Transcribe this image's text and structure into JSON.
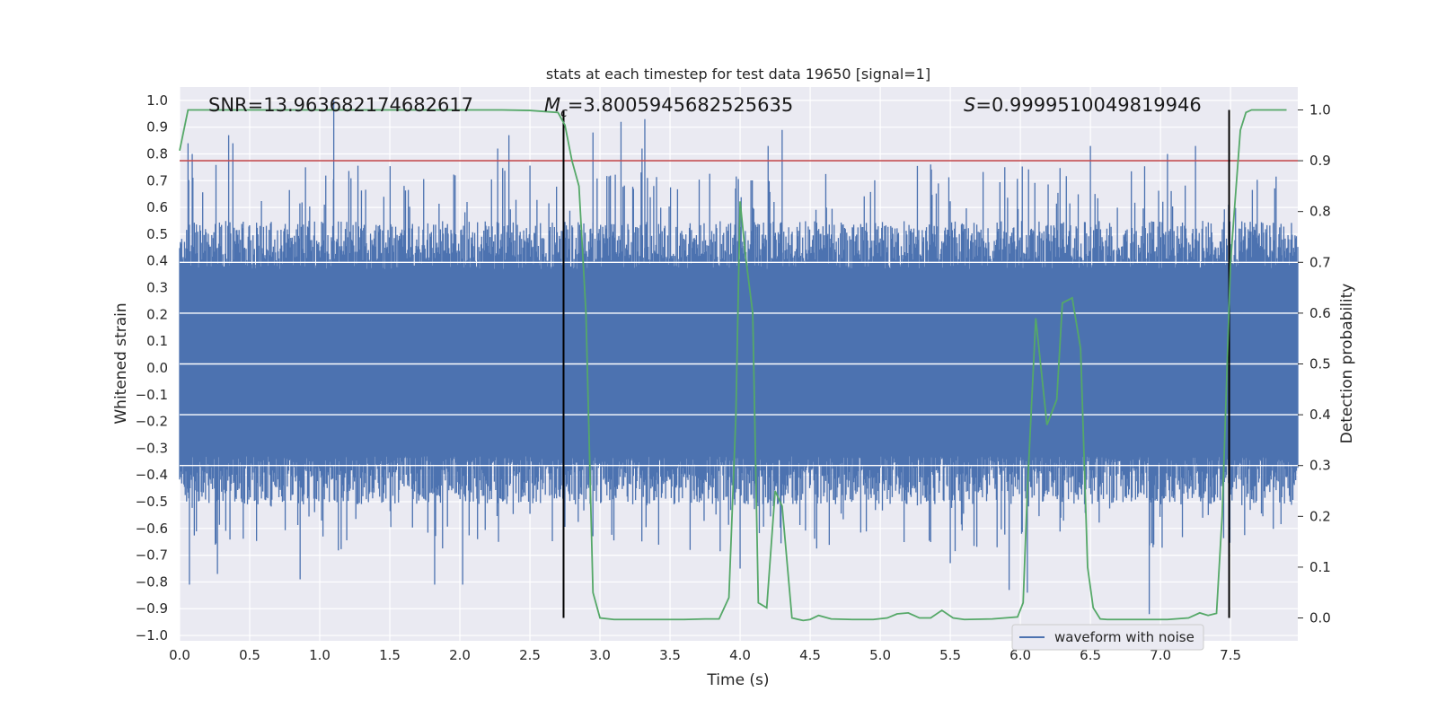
{
  "chart_data": {
    "type": "line",
    "title": "stats at each timestep for test data 19650 [signal=1]",
    "xlabel": "Time (s)",
    "ylabel": "Whitened strain",
    "y2label": "Detection probability",
    "xlim": [
      0.0,
      7.98
    ],
    "ylim": [
      -1.02,
      1.05
    ],
    "y2lim": [
      -0.045,
      1.045
    ],
    "grid": true,
    "x_ticks": [
      0.0,
      0.5,
      1.0,
      1.5,
      2.0,
      2.5,
      3.0,
      3.5,
      4.0,
      4.5,
      5.0,
      5.5,
      6.0,
      6.5,
      7.0,
      7.5
    ],
    "x_tick_labels": [
      "0.0",
      "0.5",
      "1.0",
      "1.5",
      "2.0",
      "2.5",
      "3.0",
      "3.5",
      "4.0",
      "4.5",
      "5.0",
      "5.5",
      "6.0",
      "6.5",
      "7.0",
      "7.5"
    ],
    "y_ticks": [
      1.0,
      0.9,
      0.8,
      0.7,
      0.6,
      0.5,
      0.4,
      0.3,
      0.2,
      0.1,
      0.0,
      -0.1,
      -0.2,
      -0.3,
      -0.4,
      -0.5,
      -0.6,
      -0.7,
      -0.8,
      -0.9,
      -1.0
    ],
    "y_tick_labels": [
      "1.0",
      "0.9",
      "0.8",
      "0.7",
      "0.6",
      "0.5",
      "0.4",
      "0.3",
      "0.2",
      "0.1",
      "0.0",
      "−0.1",
      "−0.2",
      "−0.3",
      "−0.4",
      "−0.5",
      "−0.6",
      "−0.7",
      "−0.8",
      "−0.9",
      "−1.0"
    ],
    "y2_ticks": [
      1.0,
      0.9,
      0.8,
      0.7,
      0.6,
      0.5,
      0.4,
      0.3,
      0.2,
      0.1,
      0.0
    ],
    "y2_tick_labels": [
      "1.0",
      "0.9",
      "0.8",
      "0.7",
      "0.6",
      "0.5",
      "0.4",
      "0.3",
      "0.2",
      "0.1",
      "0.0"
    ],
    "annotations": {
      "snr": "SNR=13.963682174682617",
      "mc_symbol": "M",
      "mc_subscript": "c",
      "mc_value": "=3.8005945682525635",
      "s_symbol": "S",
      "s_value": "=0.9999510049819946"
    },
    "threshold": {
      "value": 0.9,
      "axis": "y2",
      "color": "#c44e52"
    },
    "vlines": [
      2.74,
      7.49
    ],
    "legend": {
      "label": "waveform with noise",
      "position": "lower-right"
    },
    "series": [
      {
        "name": "waveform with noise",
        "axis": "y",
        "color": "#4c72b0",
        "kind": "noise",
        "spikes": [
          {
            "x": 0.06,
            "y": 0.84
          },
          {
            "x": 0.09,
            "y": 0.8
          },
          {
            "x": 0.35,
            "y": 0.87
          },
          {
            "x": 0.38,
            "y": 0.84
          },
          {
            "x": 1.1,
            "y": 1.0
          },
          {
            "x": 2.27,
            "y": 0.82
          },
          {
            "x": 2.35,
            "y": 0.87
          },
          {
            "x": 2.95,
            "y": 0.88
          },
          {
            "x": 3.15,
            "y": 0.92
          },
          {
            "x": 3.3,
            "y": 0.82
          },
          {
            "x": 3.32,
            "y": 0.93
          },
          {
            "x": 4.2,
            "y": 0.83
          },
          {
            "x": 4.3,
            "y": 0.89
          },
          {
            "x": 6.5,
            "y": 0.83
          },
          {
            "x": 7.05,
            "y": 0.8
          },
          {
            "x": 7.25,
            "y": 0.83
          },
          {
            "x": 0.07,
            "y": -0.81
          },
          {
            "x": 0.27,
            "y": -0.77
          },
          {
            "x": 0.86,
            "y": -0.79
          },
          {
            "x": 1.82,
            "y": -0.81
          },
          {
            "x": 2.02,
            "y": -0.81
          },
          {
            "x": 5.92,
            "y": -0.83
          },
          {
            "x": 6.05,
            "y": -0.84
          },
          {
            "x": 6.92,
            "y": -0.92
          },
          {
            "x": 4.0,
            "y": -0.75
          },
          {
            "x": 5.5,
            "y": -0.73
          }
        ]
      },
      {
        "name": "detection probability",
        "axis": "y2",
        "color": "#55a868",
        "x": [
          0.0,
          0.06,
          0.3,
          0.6,
          1.0,
          1.5,
          2.0,
          2.3,
          2.5,
          2.7,
          2.75,
          2.8,
          2.85,
          2.9,
          2.95,
          3.0,
          3.1,
          3.3,
          3.6,
          3.75,
          3.85,
          3.92,
          3.97,
          4.0,
          4.04,
          4.09,
          4.13,
          4.19,
          4.25,
          4.3,
          4.37,
          4.45,
          4.5,
          4.56,
          4.65,
          4.8,
          4.95,
          5.05,
          5.12,
          5.2,
          5.28,
          5.36,
          5.44,
          5.52,
          5.6,
          5.8,
          5.98,
          6.02,
          6.05,
          6.11,
          6.19,
          6.26,
          6.3,
          6.37,
          6.43,
          6.48,
          6.52,
          6.57,
          6.62,
          6.7,
          6.9,
          7.05,
          7.2,
          7.28,
          7.34,
          7.4,
          7.44,
          7.5,
          7.57,
          7.61,
          7.65,
          7.75,
          7.9
        ],
        "y": [
          0.92,
          1.0,
          1.0,
          1.0,
          1.0,
          1.0,
          1.0,
          1.0,
          0.999,
          0.995,
          0.97,
          0.9,
          0.85,
          0.6,
          0.05,
          0.0,
          -0.003,
          -0.003,
          -0.003,
          -0.002,
          -0.002,
          0.04,
          0.4,
          0.82,
          0.71,
          0.6,
          0.03,
          0.02,
          0.25,
          0.22,
          0.0,
          -0.005,
          -0.003,
          0.005,
          -0.002,
          -0.003,
          -0.003,
          0.0,
          0.008,
          0.01,
          0.0,
          0.0,
          0.015,
          0.0,
          -0.003,
          -0.002,
          0.002,
          0.03,
          0.25,
          0.59,
          0.38,
          0.43,
          0.62,
          0.63,
          0.53,
          0.1,
          0.02,
          -0.002,
          -0.003,
          -0.003,
          -0.003,
          -0.003,
          0.0,
          0.01,
          0.005,
          0.009,
          0.2,
          0.7,
          0.96,
          0.995,
          1.0,
          1.0,
          1.0
        ]
      }
    ]
  }
}
